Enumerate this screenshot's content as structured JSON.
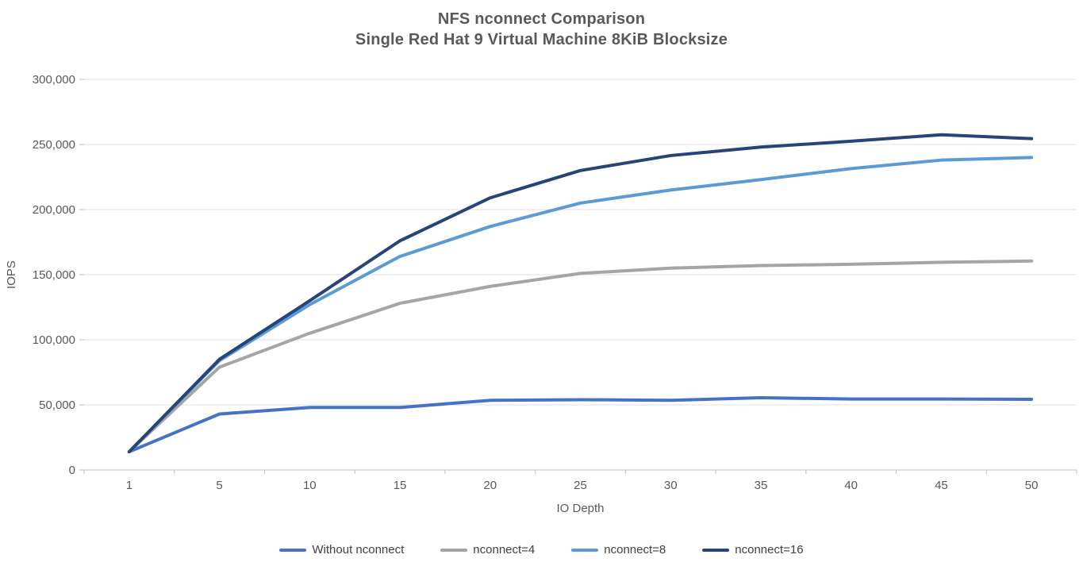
{
  "chart": {
    "title_line1": "NFS nconnect Comparison",
    "title_line2": "Single Red Hat 9 Virtual Machine 8KiB Blocksize",
    "colors": {
      "text": "#595959",
      "tick_text": "#595959",
      "gridline": "#E2E2E2",
      "axis_line": "#BFBFBF"
    }
  },
  "chart_data": {
    "type": "line",
    "title": "NFS nconnect Comparison — Single Red Hat 9 Virtual Machine 8KiB Blocksize",
    "xlabel": "IO Depth",
    "ylabel": "IOPS",
    "categories": [
      1,
      5,
      10,
      15,
      20,
      25,
      30,
      35,
      40,
      45,
      50
    ],
    "series": [
      {
        "name": "Without nconnect",
        "color": "#4472C4",
        "values": [
          14000,
          43000,
          48000,
          48000,
          53500,
          54000,
          53500,
          55500,
          54500,
          54500,
          54300
        ]
      },
      {
        "name": "nconnect=4",
        "color": "#A5A5A5",
        "values": [
          14000,
          79000,
          105000,
          128000,
          141000,
          151000,
          155000,
          157000,
          158000,
          159500,
          160500
        ]
      },
      {
        "name": "nconnect=8",
        "color": "#5B9BD5",
        "values": [
          14000,
          84000,
          127000,
          164000,
          187000,
          205000,
          215000,
          223000,
          231500,
          238000,
          240000
        ]
      },
      {
        "name": "nconnect=16",
        "color": "#264478",
        "values": [
          14000,
          85000,
          130000,
          176000,
          209000,
          230000,
          241500,
          248000,
          252500,
          257500,
          254500
        ]
      }
    ],
    "ylim": [
      0,
      300000
    ],
    "ytick_step": 50000,
    "ytick_labels": [
      "0",
      "50,000",
      "100,000",
      "150,000",
      "200,000",
      "250,000",
      "300,000"
    ],
    "grid": true,
    "legend_position": "bottom"
  }
}
